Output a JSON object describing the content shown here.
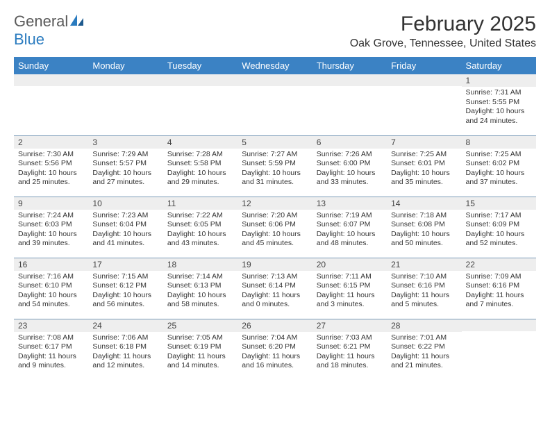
{
  "logo": {
    "text1": "General",
    "text2": "Blue"
  },
  "title": "February 2025",
  "location": "Oak Grove, Tennessee, United States",
  "colors": {
    "header_bg": "#3b82c4",
    "header_text": "#ffffff",
    "daynum_bg": "#eeeeee",
    "border": "#7a9bb8",
    "logo_gray": "#5a5a5a",
    "logo_blue": "#2a7bbf"
  },
  "weekdays": [
    "Sunday",
    "Monday",
    "Tuesday",
    "Wednesday",
    "Thursday",
    "Friday",
    "Saturday"
  ],
  "weeks": [
    [
      {
        "day": "",
        "sunrise": "",
        "sunset": "",
        "daylight": ""
      },
      {
        "day": "",
        "sunrise": "",
        "sunset": "",
        "daylight": ""
      },
      {
        "day": "",
        "sunrise": "",
        "sunset": "",
        "daylight": ""
      },
      {
        "day": "",
        "sunrise": "",
        "sunset": "",
        "daylight": ""
      },
      {
        "day": "",
        "sunrise": "",
        "sunset": "",
        "daylight": ""
      },
      {
        "day": "",
        "sunrise": "",
        "sunset": "",
        "daylight": ""
      },
      {
        "day": "1",
        "sunrise": "Sunrise: 7:31 AM",
        "sunset": "Sunset: 5:55 PM",
        "daylight": "Daylight: 10 hours and 24 minutes."
      }
    ],
    [
      {
        "day": "2",
        "sunrise": "Sunrise: 7:30 AM",
        "sunset": "Sunset: 5:56 PM",
        "daylight": "Daylight: 10 hours and 25 minutes."
      },
      {
        "day": "3",
        "sunrise": "Sunrise: 7:29 AM",
        "sunset": "Sunset: 5:57 PM",
        "daylight": "Daylight: 10 hours and 27 minutes."
      },
      {
        "day": "4",
        "sunrise": "Sunrise: 7:28 AM",
        "sunset": "Sunset: 5:58 PM",
        "daylight": "Daylight: 10 hours and 29 minutes."
      },
      {
        "day": "5",
        "sunrise": "Sunrise: 7:27 AM",
        "sunset": "Sunset: 5:59 PM",
        "daylight": "Daylight: 10 hours and 31 minutes."
      },
      {
        "day": "6",
        "sunrise": "Sunrise: 7:26 AM",
        "sunset": "Sunset: 6:00 PM",
        "daylight": "Daylight: 10 hours and 33 minutes."
      },
      {
        "day": "7",
        "sunrise": "Sunrise: 7:25 AM",
        "sunset": "Sunset: 6:01 PM",
        "daylight": "Daylight: 10 hours and 35 minutes."
      },
      {
        "day": "8",
        "sunrise": "Sunrise: 7:25 AM",
        "sunset": "Sunset: 6:02 PM",
        "daylight": "Daylight: 10 hours and 37 minutes."
      }
    ],
    [
      {
        "day": "9",
        "sunrise": "Sunrise: 7:24 AM",
        "sunset": "Sunset: 6:03 PM",
        "daylight": "Daylight: 10 hours and 39 minutes."
      },
      {
        "day": "10",
        "sunrise": "Sunrise: 7:23 AM",
        "sunset": "Sunset: 6:04 PM",
        "daylight": "Daylight: 10 hours and 41 minutes."
      },
      {
        "day": "11",
        "sunrise": "Sunrise: 7:22 AM",
        "sunset": "Sunset: 6:05 PM",
        "daylight": "Daylight: 10 hours and 43 minutes."
      },
      {
        "day": "12",
        "sunrise": "Sunrise: 7:20 AM",
        "sunset": "Sunset: 6:06 PM",
        "daylight": "Daylight: 10 hours and 45 minutes."
      },
      {
        "day": "13",
        "sunrise": "Sunrise: 7:19 AM",
        "sunset": "Sunset: 6:07 PM",
        "daylight": "Daylight: 10 hours and 48 minutes."
      },
      {
        "day": "14",
        "sunrise": "Sunrise: 7:18 AM",
        "sunset": "Sunset: 6:08 PM",
        "daylight": "Daylight: 10 hours and 50 minutes."
      },
      {
        "day": "15",
        "sunrise": "Sunrise: 7:17 AM",
        "sunset": "Sunset: 6:09 PM",
        "daylight": "Daylight: 10 hours and 52 minutes."
      }
    ],
    [
      {
        "day": "16",
        "sunrise": "Sunrise: 7:16 AM",
        "sunset": "Sunset: 6:10 PM",
        "daylight": "Daylight: 10 hours and 54 minutes."
      },
      {
        "day": "17",
        "sunrise": "Sunrise: 7:15 AM",
        "sunset": "Sunset: 6:12 PM",
        "daylight": "Daylight: 10 hours and 56 minutes."
      },
      {
        "day": "18",
        "sunrise": "Sunrise: 7:14 AM",
        "sunset": "Sunset: 6:13 PM",
        "daylight": "Daylight: 10 hours and 58 minutes."
      },
      {
        "day": "19",
        "sunrise": "Sunrise: 7:13 AM",
        "sunset": "Sunset: 6:14 PM",
        "daylight": "Daylight: 11 hours and 0 minutes."
      },
      {
        "day": "20",
        "sunrise": "Sunrise: 7:11 AM",
        "sunset": "Sunset: 6:15 PM",
        "daylight": "Daylight: 11 hours and 3 minutes."
      },
      {
        "day": "21",
        "sunrise": "Sunrise: 7:10 AM",
        "sunset": "Sunset: 6:16 PM",
        "daylight": "Daylight: 11 hours and 5 minutes."
      },
      {
        "day": "22",
        "sunrise": "Sunrise: 7:09 AM",
        "sunset": "Sunset: 6:16 PM",
        "daylight": "Daylight: 11 hours and 7 minutes."
      }
    ],
    [
      {
        "day": "23",
        "sunrise": "Sunrise: 7:08 AM",
        "sunset": "Sunset: 6:17 PM",
        "daylight": "Daylight: 11 hours and 9 minutes."
      },
      {
        "day": "24",
        "sunrise": "Sunrise: 7:06 AM",
        "sunset": "Sunset: 6:18 PM",
        "daylight": "Daylight: 11 hours and 12 minutes."
      },
      {
        "day": "25",
        "sunrise": "Sunrise: 7:05 AM",
        "sunset": "Sunset: 6:19 PM",
        "daylight": "Daylight: 11 hours and 14 minutes."
      },
      {
        "day": "26",
        "sunrise": "Sunrise: 7:04 AM",
        "sunset": "Sunset: 6:20 PM",
        "daylight": "Daylight: 11 hours and 16 minutes."
      },
      {
        "day": "27",
        "sunrise": "Sunrise: 7:03 AM",
        "sunset": "Sunset: 6:21 PM",
        "daylight": "Daylight: 11 hours and 18 minutes."
      },
      {
        "day": "28",
        "sunrise": "Sunrise: 7:01 AM",
        "sunset": "Sunset: 6:22 PM",
        "daylight": "Daylight: 11 hours and 21 minutes."
      },
      {
        "day": "",
        "sunrise": "",
        "sunset": "",
        "daylight": ""
      }
    ]
  ]
}
